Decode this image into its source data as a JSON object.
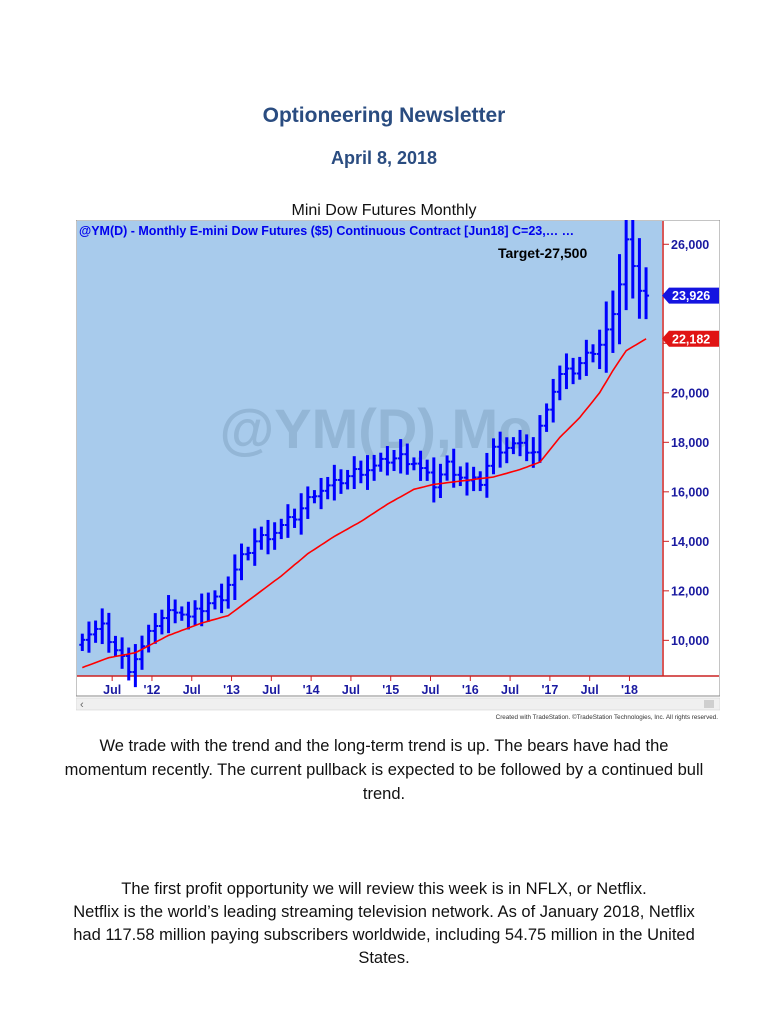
{
  "header": {
    "title": "Optioneering Newsletter",
    "date": "April 8, 2018"
  },
  "chart_caption": "Mini Dow Futures Monthly",
  "chart_data": {
    "type": "candlestick",
    "title": "@YM(D) - Monthly  E-mini Dow Futures ($5) Continuous Contract [Jun18]  C=23,… …",
    "watermark": "@YM(D),Mo",
    "annotation": "Target-27,500",
    "last_price_label": "23,926",
    "ma_price_label": "22,182",
    "last_price": 23926,
    "ma_price": 22182,
    "ylim": [
      8600,
      26900
    ],
    "yticks": [
      {
        "value": 26000,
        "label": "26,000"
      },
      {
        "value": 24000,
        "label": ""
      },
      {
        "value": 22000,
        "label": ""
      },
      {
        "value": 20000,
        "label": "20,000"
      },
      {
        "value": 18000,
        "label": "18,000"
      },
      {
        "value": 16000,
        "label": "16,000"
      },
      {
        "value": 14000,
        "label": "14,000"
      },
      {
        "value": 12000,
        "label": "12,000"
      },
      {
        "value": 10000,
        "label": "10,000"
      }
    ],
    "xticks": [
      {
        "index": 4.5,
        "label": "Jul"
      },
      {
        "index": 10.5,
        "label": "'12"
      },
      {
        "index": 16.5,
        "label": "Jul"
      },
      {
        "index": 22.5,
        "label": "'13"
      },
      {
        "index": 28.5,
        "label": "Jul"
      },
      {
        "index": 34.5,
        "label": "'14"
      },
      {
        "index": 40.5,
        "label": "Jul"
      },
      {
        "index": 46.5,
        "label": "'15"
      },
      {
        "index": 52.5,
        "label": "Jul"
      },
      {
        "index": 58.5,
        "label": "'16"
      },
      {
        "index": 64.5,
        "label": "Jul"
      },
      {
        "index": 70.5,
        "label": "'17"
      },
      {
        "index": 76.5,
        "label": "Jul"
      },
      {
        "index": 82.5,
        "label": "'18"
      }
    ],
    "n_bars": 87,
    "key_closes": [
      [
        0,
        10200
      ],
      [
        3,
        10500
      ],
      [
        5,
        9600
      ],
      [
        7,
        8900
      ],
      [
        9,
        9700
      ],
      [
        11,
        10700
      ],
      [
        14,
        11300
      ],
      [
        16,
        10900
      ],
      [
        19,
        11500
      ],
      [
        21,
        11800
      ],
      [
        22,
        12300
      ],
      [
        24,
        13300
      ],
      [
        26,
        14000
      ],
      [
        29,
        14400
      ],
      [
        32,
        15000
      ],
      [
        35,
        16000
      ],
      [
        38,
        16300
      ],
      [
        41,
        16800
      ],
      [
        44,
        17000
      ],
      [
        46,
        17300
      ],
      [
        48,
        17400
      ],
      [
        50,
        17200
      ],
      [
        53,
        16300
      ],
      [
        55,
        17100
      ],
      [
        58,
        16400
      ],
      [
        60,
        16400
      ],
      [
        62,
        17700
      ],
      [
        65,
        17900
      ],
      [
        68,
        17600
      ],
      [
        70,
        19500
      ],
      [
        72,
        20700
      ],
      [
        74,
        20900
      ],
      [
        76,
        21500
      ],
      [
        78,
        22000
      ],
      [
        80,
        23000
      ],
      [
        81,
        24500
      ],
      [
        82,
        26200
      ],
      [
        83,
        25000
      ],
      [
        84,
        24300
      ],
      [
        85,
        23926
      ]
    ],
    "moving_average": [
      [
        0,
        8900
      ],
      [
        4,
        9300
      ],
      [
        8,
        9500
      ],
      [
        13,
        10200
      ],
      [
        18,
        10700
      ],
      [
        22,
        11000
      ],
      [
        26,
        11800
      ],
      [
        30,
        12600
      ],
      [
        34,
        13500
      ],
      [
        38,
        14200
      ],
      [
        42,
        14800
      ],
      [
        46,
        15500
      ],
      [
        50,
        16100
      ],
      [
        53,
        16300
      ],
      [
        56,
        16400
      ],
      [
        59,
        16500
      ],
      [
        62,
        16600
      ],
      [
        66,
        16900
      ],
      [
        69,
        17200
      ],
      [
        72,
        18200
      ],
      [
        75,
        19000
      ],
      [
        78,
        20000
      ],
      [
        80,
        20900
      ],
      [
        82,
        21700
      ],
      [
        85,
        22182
      ]
    ],
    "colors": {
      "background": "#a8cbec",
      "bars": "#0000ff",
      "average": "#ff0000",
      "axis": "#cc2222",
      "title": "#0000ee",
      "watermark": "#93b6d6"
    },
    "footer_credit": "Created with TradeStation. ©TradeStation Technologies, Inc. All rights reserved.",
    "scroll_left": "‹",
    "scroll_right": "›"
  },
  "paragraphs": {
    "p1": "We trade with the trend and the long-term trend is up. The bears have had the momentum recently. The current pullback is expected to be followed by a continued bull trend.",
    "p2_line1": "The first profit opportunity we will review this week is in NFLX, or Netflix.",
    "p2_line2": "Netflix is the world’s leading streaming television network. As of January 2018, Netflix had 117.58 million paying subscribers worldwide, including 54.75 million in the United States."
  }
}
